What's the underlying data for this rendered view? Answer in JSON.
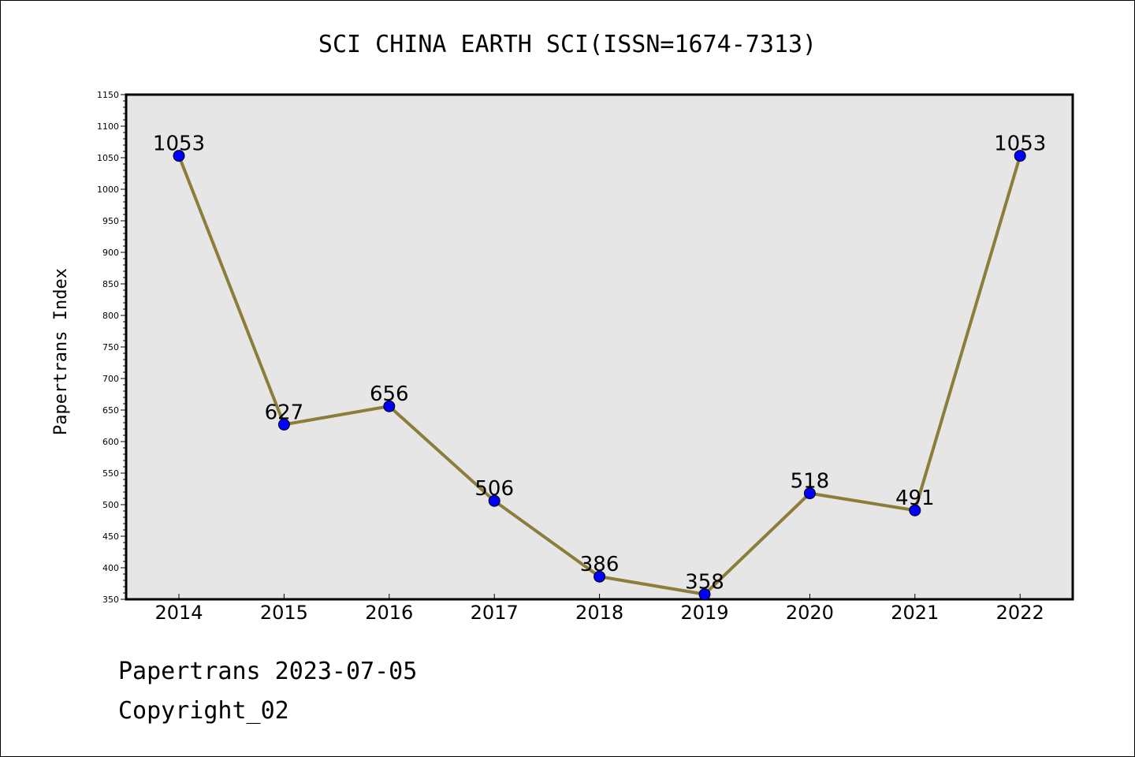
{
  "chart_data": {
    "type": "line",
    "title": "SCI CHINA EARTH SCI(ISSN=1674-7313)",
    "xlabel": "",
    "ylabel": "Papertrans Index",
    "categories": [
      "2014",
      "2015",
      "2016",
      "2017",
      "2018",
      "2019",
      "2020",
      "2021",
      "2022"
    ],
    "series": [
      {
        "values": [
          1053,
          627,
          656,
          506,
          386,
          358,
          518,
          491,
          1053
        ]
      }
    ],
    "data_labels": [
      "1053",
      "627",
      "656",
      "506",
      "386",
      "358",
      "518",
      "491",
      "1053"
    ],
    "yticks": [
      350,
      400,
      450,
      500,
      550,
      600,
      650,
      700,
      750,
      800,
      850,
      900,
      950,
      1000,
      1050,
      1100,
      1150
    ],
    "ylim": [
      350,
      1150
    ],
    "grid": false,
    "legend": "none",
    "colors": {
      "line": "#8B7D3A",
      "marker_fill": "#0000FF",
      "plot_background": "#E6E6E6"
    }
  },
  "footer": {
    "line1": "Papertrans 2023-07-05",
    "line2": "Copyright_02"
  }
}
